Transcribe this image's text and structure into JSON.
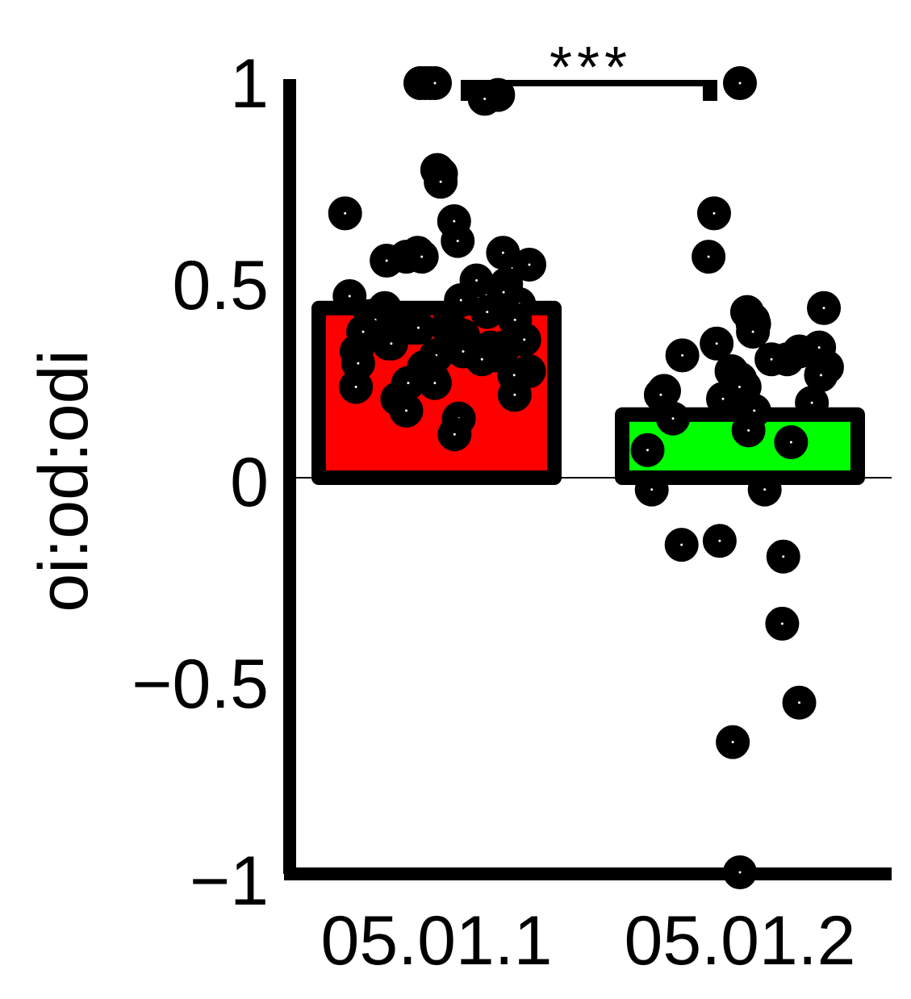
{
  "chart_data": {
    "type": "bar",
    "categories": [
      "05.01.1",
      "05.01.2"
    ],
    "ylabel": "oi:od:odi",
    "ylim": [
      -1,
      1
    ],
    "yticks": [
      {
        "value": 1,
        "label": "1"
      },
      {
        "value": 0.5,
        "label": "0.5"
      },
      {
        "value": 0,
        "label": "0"
      },
      {
        "value": -0.5,
        "label": "−0.5"
      },
      {
        "value": -1,
        "label": "−1"
      }
    ],
    "grid": false,
    "legend": "none",
    "series": [
      {
        "values": [
          0.43,
          0.16
        ],
        "colors": [
          "#ff0000",
          "#00ff00"
        ],
        "points": [
          [
            1.0,
            1.0,
            1.0,
            1.0,
            0.97,
            0.96,
            0.78,
            0.77,
            0.75,
            0.67,
            0.65,
            0.6,
            0.57,
            0.57,
            0.56,
            0.56,
            0.55,
            0.54,
            0.5,
            0.49,
            0.47,
            0.46,
            0.45,
            0.44,
            0.43,
            0.42,
            0.41,
            0.4,
            0.4,
            0.39,
            0.39,
            0.38,
            0.38,
            0.37,
            0.37,
            0.36,
            0.35,
            0.34,
            0.34,
            0.33,
            0.33,
            0.32,
            0.32,
            0.31,
            0.31,
            0.3,
            0.29,
            0.28,
            0.27,
            0.26,
            0.25,
            0.24,
            0.24,
            0.23,
            0.21,
            0.2,
            0.17,
            0.15,
            0.11
          ],
          [
            1.0,
            0.67,
            0.56,
            0.43,
            0.42,
            0.4,
            0.39,
            0.39,
            0.37,
            0.34,
            0.33,
            0.32,
            0.31,
            0.3,
            0.3,
            0.28,
            0.27,
            0.26,
            0.25,
            0.23,
            0.23,
            0.22,
            0.21,
            0.2,
            0.19,
            0.17,
            0.15,
            0.12,
            0.09,
            0.07,
            -0.03,
            -0.03,
            -0.16,
            -0.17,
            -0.2,
            -0.37,
            -0.57,
            -0.67,
            -1.0
          ]
        ]
      }
    ],
    "significance": {
      "label": "***",
      "from": "05.01.1",
      "to": "05.01.2",
      "y": 1.0
    }
  }
}
